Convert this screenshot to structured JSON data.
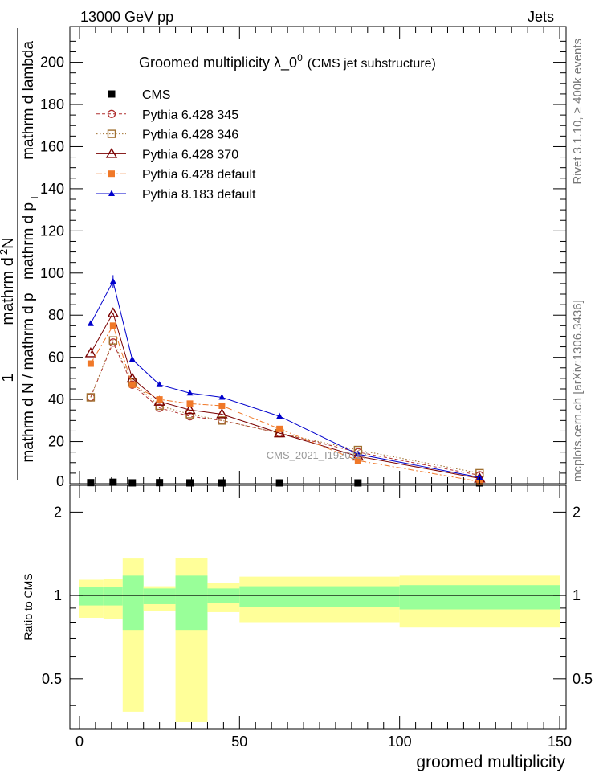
{
  "header": {
    "energy_label": "13000 GeV pp",
    "category_label": "Jets"
  },
  "side_labels": {
    "rivet": "Rivet 3.1.10, ≥ 400k events",
    "mcplots": "mcplots.cern.ch [arXiv:1306.3436]"
  },
  "watermark": "CMS_2021_I1920187",
  "chart_data": [
    {
      "type": "line",
      "title": "Groomed multiplicity  λ_0",
      "title_sup": "0",
      "title_suffix": "(CMS jet substructure)",
      "ylabel_num_main": "1",
      "ylabel_num_lambda": "mathrm d lambda",
      "ylabel_den_1": "mathrm d N / mathrm d p",
      "ylabel_den_2": "mathrm d p",
      "ylabel_den_3": "mathrm d lambda",
      "ylabel_sub_T": "T",
      "ylabel_d2N": "mathrm d",
      "ylabel_sup2": "2",
      "ylabel_N": "N",
      "xlim": [
        -3,
        152
      ],
      "ylim": [
        0,
        217
      ],
      "xticks": [
        0,
        50,
        100,
        150
      ],
      "yticks": [
        20,
        40,
        60,
        80,
        100,
        120,
        140,
        160,
        180,
        200
      ],
      "ytick_zero_label": "0",
      "legend_position": "top-left",
      "bin_edges": [
        0,
        7.5,
        13.5,
        20,
        30,
        40,
        50,
        75,
        100,
        150
      ],
      "series": [
        {
          "name": "CMS",
          "color": "#000000",
          "marker": "square",
          "line": "none",
          "x": [
            3.5,
            10.5,
            16.5,
            25,
            34.5,
            44.5,
            62.5,
            87,
            125
          ],
          "y": [
            0.5,
            0.7,
            0.4,
            0.5,
            0.4,
            0.3,
            0.2,
            0.1,
            0.0
          ]
        },
        {
          "name": "Pythia 6.428 345",
          "color": "#b03030",
          "marker": "open-circle",
          "line": "dashed",
          "x": [
            3.5,
            10.5,
            16.5,
            25,
            34.5,
            44.5,
            62.5,
            87,
            125
          ],
          "y": [
            41,
            67,
            47,
            36,
            32,
            30,
            24,
            15,
            4
          ]
        },
        {
          "name": "Pythia 6.428 346",
          "color": "#a07030",
          "marker": "open-square",
          "line": "dotted",
          "x": [
            3.5,
            10.5,
            16.5,
            25,
            34.5,
            44.5,
            62.5,
            87,
            125
          ],
          "y": [
            41,
            68,
            48,
            37,
            33,
            30,
            24,
            16,
            5
          ]
        },
        {
          "name": "Pythia 6.428 370",
          "color": "#7a0000",
          "marker": "open-triangle",
          "line": "solid",
          "x": [
            3.5,
            10.5,
            16.5,
            25,
            34.5,
            44.5,
            62.5,
            87,
            125
          ],
          "y": [
            62,
            81,
            50,
            39,
            35,
            33,
            24,
            13,
            2.5
          ]
        },
        {
          "name": "Pythia 6.428 default",
          "color": "#f07828",
          "marker": "filled-square",
          "line": "dashdot",
          "x": [
            3.5,
            10.5,
            16.5,
            25,
            34.5,
            44.5,
            62.5,
            87,
            125
          ],
          "y": [
            57,
            75,
            47,
            40,
            38,
            37,
            26,
            11,
            1
          ]
        },
        {
          "name": "Pythia 8.183 default",
          "color": "#0000cc",
          "marker": "filled-triangle",
          "line": "solid",
          "x": [
            3.5,
            10.5,
            16.5,
            25,
            34.5,
            44.5,
            62.5,
            87,
            125
          ],
          "y": [
            76,
            96,
            59,
            47,
            43,
            41,
            32,
            14,
            3
          ]
        }
      ]
    },
    {
      "type": "area",
      "title": "",
      "ylabel": "Ratio to CMS",
      "xlabel": "groomed multiplicity",
      "xlim": [
        -3,
        152
      ],
      "ylim": [
        0.33,
        2.5
      ],
      "xticks": [
        0,
        50,
        100,
        150
      ],
      "yticks": [
        0.5,
        1,
        2
      ],
      "ytick_labels": [
        "0.5",
        "1",
        "2"
      ],
      "bands": [
        {
          "x0": 0,
          "x1": 7.5,
          "stat_lo": 0.92,
          "stat_hi": 1.07,
          "tot_lo": 0.83,
          "tot_hi": 1.14
        },
        {
          "x0": 7.5,
          "x1": 13.5,
          "stat_lo": 0.92,
          "stat_hi": 1.07,
          "tot_lo": 0.82,
          "tot_hi": 1.15
        },
        {
          "x0": 13.5,
          "x1": 20,
          "stat_lo": 0.75,
          "stat_hi": 1.18,
          "tot_lo": 0.38,
          "tot_hi": 1.36
        },
        {
          "x0": 20,
          "x1": 30,
          "stat_lo": 0.93,
          "stat_hi": 1.06,
          "tot_lo": 0.88,
          "tot_hi": 1.08
        },
        {
          "x0": 30,
          "x1": 40,
          "stat_lo": 0.75,
          "stat_hi": 1.18,
          "tot_lo": 0.35,
          "tot_hi": 1.37
        },
        {
          "x0": 40,
          "x1": 50,
          "stat_lo": 0.94,
          "stat_hi": 1.06,
          "tot_lo": 0.87,
          "tot_hi": 1.11
        },
        {
          "x0": 50,
          "x1": 75,
          "stat_lo": 0.91,
          "stat_hi": 1.08,
          "tot_lo": 0.8,
          "tot_hi": 1.17
        },
        {
          "x0": 75,
          "x1": 100,
          "stat_lo": 0.91,
          "stat_hi": 1.08,
          "tot_lo": 0.8,
          "tot_hi": 1.17
        },
        {
          "x0": 100,
          "x1": 150,
          "stat_lo": 0.89,
          "stat_hi": 1.09,
          "tot_lo": 0.77,
          "tot_hi": 1.18
        }
      ]
    }
  ],
  "colors": {
    "stat_band": "#99ff99",
    "syst_band": "#ffff99"
  }
}
